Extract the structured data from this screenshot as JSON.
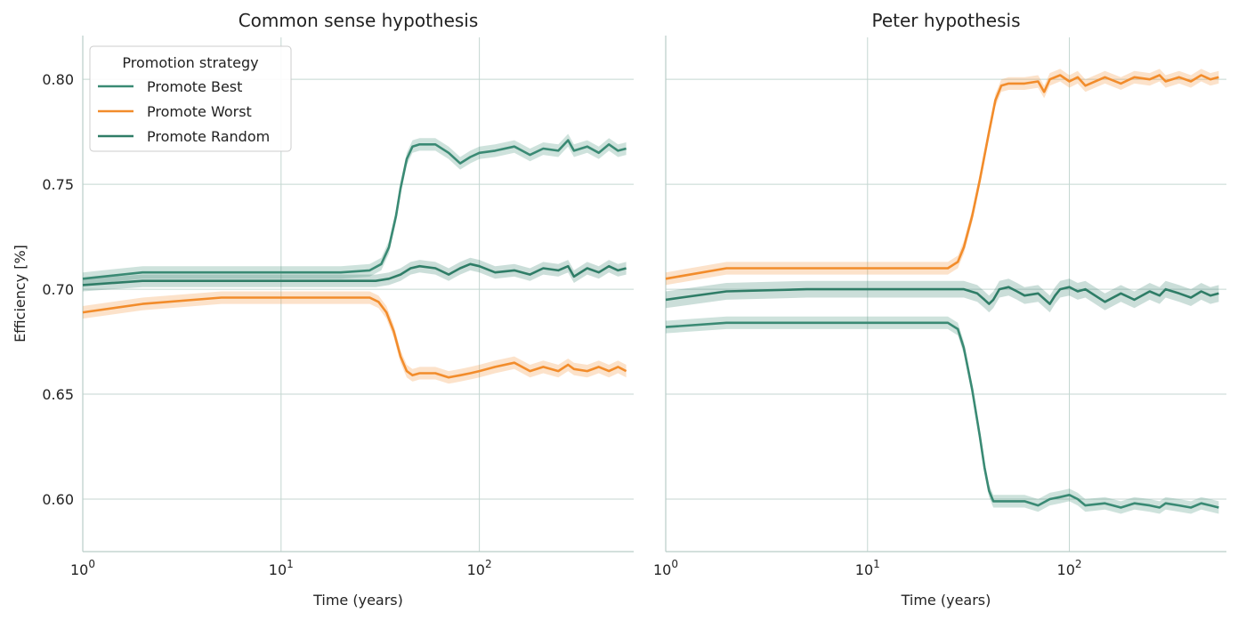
{
  "chart_data": [
    {
      "type": "line",
      "title": "Common sense hypothesis",
      "xlabel": "Time (years)",
      "ylabel": "Efficiency [%]",
      "xscale": "log",
      "xlim": [
        1,
        600
      ],
      "ylim": [
        0.575,
        0.82
      ],
      "xticks": [
        1,
        10,
        100
      ],
      "xtick_labels": [
        [
          "10",
          "0"
        ],
        [
          "10",
          "1"
        ],
        [
          "10",
          "2"
        ]
      ],
      "yticks": [
        0.6,
        0.65,
        0.7,
        0.75,
        0.8
      ],
      "ytick_labels": [
        "0.60",
        "0.65",
        "0.70",
        "0.75",
        "0.80"
      ],
      "grid": true,
      "legend": {
        "title": "Promotion strategy",
        "placement": "top-left",
        "entries": [
          "Promote Best",
          "Promote Worst",
          "Promote Random"
        ]
      },
      "series": [
        {
          "name": "Promote Best",
          "color": "#3a8a74",
          "x": [
            1,
            2,
            5,
            10,
            20,
            28,
            32,
            35,
            38,
            40,
            43,
            46,
            50,
            60,
            70,
            80,
            90,
            100,
            120,
            150,
            180,
            210,
            250,
            280,
            300,
            350,
            400,
            450,
            500,
            550
          ],
          "y": [
            0.705,
            0.708,
            0.708,
            0.708,
            0.708,
            0.709,
            0.712,
            0.72,
            0.735,
            0.748,
            0.762,
            0.768,
            0.769,
            0.769,
            0.765,
            0.76,
            0.763,
            0.765,
            0.766,
            0.768,
            0.764,
            0.767,
            0.766,
            0.771,
            0.766,
            0.768,
            0.765,
            0.769,
            0.766,
            0.767
          ],
          "band": 0.003
        },
        {
          "name": "Promote Worst",
          "color": "#f28c2b",
          "x": [
            1,
            2,
            5,
            10,
            20,
            28,
            31,
            34,
            37,
            40,
            43,
            46,
            50,
            60,
            70,
            80,
            90,
            100,
            120,
            150,
            180,
            210,
            250,
            280,
            300,
            350,
            400,
            450,
            500,
            550
          ],
          "y": [
            0.689,
            0.693,
            0.696,
            0.696,
            0.696,
            0.696,
            0.694,
            0.689,
            0.68,
            0.668,
            0.661,
            0.659,
            0.66,
            0.66,
            0.658,
            0.659,
            0.66,
            0.661,
            0.663,
            0.665,
            0.661,
            0.663,
            0.661,
            0.664,
            0.662,
            0.661,
            0.663,
            0.661,
            0.663,
            0.661
          ],
          "band": 0.003
        },
        {
          "name": "Promote Random",
          "color": "#2f7d67",
          "x": [
            1,
            2,
            5,
            10,
            20,
            30,
            35,
            40,
            45,
            50,
            60,
            70,
            80,
            90,
            100,
            120,
            150,
            180,
            210,
            250,
            280,
            300,
            350,
            400,
            450,
            500,
            550
          ],
          "y": [
            0.702,
            0.704,
            0.704,
            0.704,
            0.704,
            0.704,
            0.705,
            0.707,
            0.71,
            0.711,
            0.71,
            0.707,
            0.71,
            0.712,
            0.711,
            0.708,
            0.709,
            0.707,
            0.71,
            0.709,
            0.711,
            0.706,
            0.71,
            0.708,
            0.711,
            0.709,
            0.71
          ],
          "band": 0.003
        }
      ]
    },
    {
      "type": "line",
      "title": "Peter hypothesis",
      "xlabel": "Time (years)",
      "ylabel": "",
      "xscale": "log",
      "xlim": [
        1,
        600
      ],
      "ylim": [
        0.575,
        0.82
      ],
      "xticks": [
        1,
        10,
        100
      ],
      "xtick_labels": [
        [
          "10",
          "0"
        ],
        [
          "10",
          "1"
        ],
        [
          "10",
          "2"
        ]
      ],
      "yticks": [
        0.6,
        0.65,
        0.7,
        0.75,
        0.8
      ],
      "grid": true,
      "series": [
        {
          "name": "Promote Best",
          "color": "#3a8a74",
          "x": [
            1,
            2,
            5,
            10,
            20,
            25,
            28,
            30,
            33,
            36,
            38,
            40,
            42,
            45,
            50,
            60,
            70,
            80,
            90,
            100,
            110,
            120,
            150,
            180,
            210,
            250,
            280,
            300,
            350,
            400,
            450,
            500,
            550
          ],
          "y": [
            0.682,
            0.684,
            0.684,
            0.684,
            0.684,
            0.684,
            0.681,
            0.672,
            0.652,
            0.63,
            0.615,
            0.604,
            0.599,
            0.599,
            0.599,
            0.599,
            0.597,
            0.6,
            0.601,
            0.602,
            0.6,
            0.597,
            0.598,
            0.596,
            0.598,
            0.597,
            0.596,
            0.598,
            0.597,
            0.596,
            0.598,
            0.597,
            0.596
          ],
          "band": 0.003
        },
        {
          "name": "Promote Worst",
          "color": "#f28c2b",
          "x": [
            1,
            2,
            5,
            10,
            20,
            25,
            28,
            30,
            33,
            36,
            40,
            43,
            46,
            50,
            60,
            70,
            75,
            80,
            90,
            100,
            110,
            120,
            150,
            180,
            210,
            250,
            280,
            300,
            350,
            400,
            450,
            500,
            550
          ],
          "y": [
            0.705,
            0.71,
            0.71,
            0.71,
            0.71,
            0.71,
            0.713,
            0.72,
            0.735,
            0.752,
            0.775,
            0.79,
            0.797,
            0.798,
            0.798,
            0.799,
            0.794,
            0.8,
            0.802,
            0.799,
            0.801,
            0.797,
            0.801,
            0.798,
            0.801,
            0.8,
            0.802,
            0.799,
            0.801,
            0.799,
            0.802,
            0.8,
            0.801
          ],
          "band": 0.003
        },
        {
          "name": "Promote Random",
          "color": "#2f7d67",
          "x": [
            1,
            2,
            5,
            10,
            20,
            30,
            35,
            38,
            40,
            42,
            45,
            50,
            55,
            60,
            70,
            80,
            85,
            90,
            100,
            110,
            120,
            150,
            180,
            210,
            250,
            280,
            300,
            350,
            400,
            450,
            500,
            550
          ],
          "y": [
            0.695,
            0.699,
            0.7,
            0.7,
            0.7,
            0.7,
            0.698,
            0.695,
            0.693,
            0.695,
            0.7,
            0.701,
            0.699,
            0.697,
            0.698,
            0.693,
            0.697,
            0.7,
            0.701,
            0.699,
            0.7,
            0.694,
            0.698,
            0.695,
            0.699,
            0.697,
            0.7,
            0.698,
            0.696,
            0.699,
            0.697,
            0.698
          ],
          "band": 0.004
        }
      ]
    }
  ]
}
